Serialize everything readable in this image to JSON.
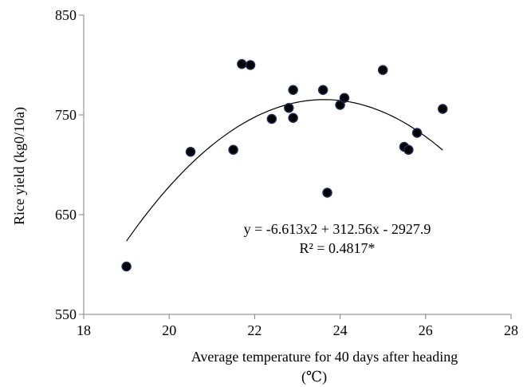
{
  "chart_data": {
    "type": "scatter",
    "xlabel_line1": "Average temperature for 40 days after heading",
    "xlabel_line2": "(℃)",
    "ylabel": "Rice yield (kg0/10a)",
    "xlim": [
      18,
      28
    ],
    "ylim": [
      550,
      850
    ],
    "xticks": [
      "18",
      "20",
      "22",
      "24",
      "26",
      "28"
    ],
    "yticks": [
      "550",
      "650",
      "750",
      "850"
    ],
    "grid": false,
    "points": [
      {
        "x": 19.0,
        "y": 598
      },
      {
        "x": 20.5,
        "y": 713
      },
      {
        "x": 21.5,
        "y": 715
      },
      {
        "x": 21.7,
        "y": 801
      },
      {
        "x": 21.9,
        "y": 800
      },
      {
        "x": 22.4,
        "y": 746
      },
      {
        "x": 22.8,
        "y": 757
      },
      {
        "x": 22.9,
        "y": 775
      },
      {
        "x": 22.9,
        "y": 747
      },
      {
        "x": 23.6,
        "y": 775
      },
      {
        "x": 23.7,
        "y": 672
      },
      {
        "x": 24.0,
        "y": 760
      },
      {
        "x": 24.1,
        "y": 767
      },
      {
        "x": 25.0,
        "y": 795
      },
      {
        "x": 25.5,
        "y": 718
      },
      {
        "x": 25.6,
        "y": 715
      },
      {
        "x": 25.8,
        "y": 732
      },
      {
        "x": 26.4,
        "y": 756
      }
    ],
    "trendline": {
      "type": "polynomial",
      "a": -6.613,
      "b": 312.56,
      "c": -2927.9,
      "xrange": [
        19.0,
        26.4
      ]
    },
    "annotations": {
      "equation": "y = -6.613x2 + 312.56x - 2927.9",
      "r2": "R² = 0.4817*"
    },
    "colors": {
      "marker_fill": "#000000",
      "marker_edge": "#1f2a5a",
      "axis": "#808080",
      "line": "#000000"
    }
  }
}
